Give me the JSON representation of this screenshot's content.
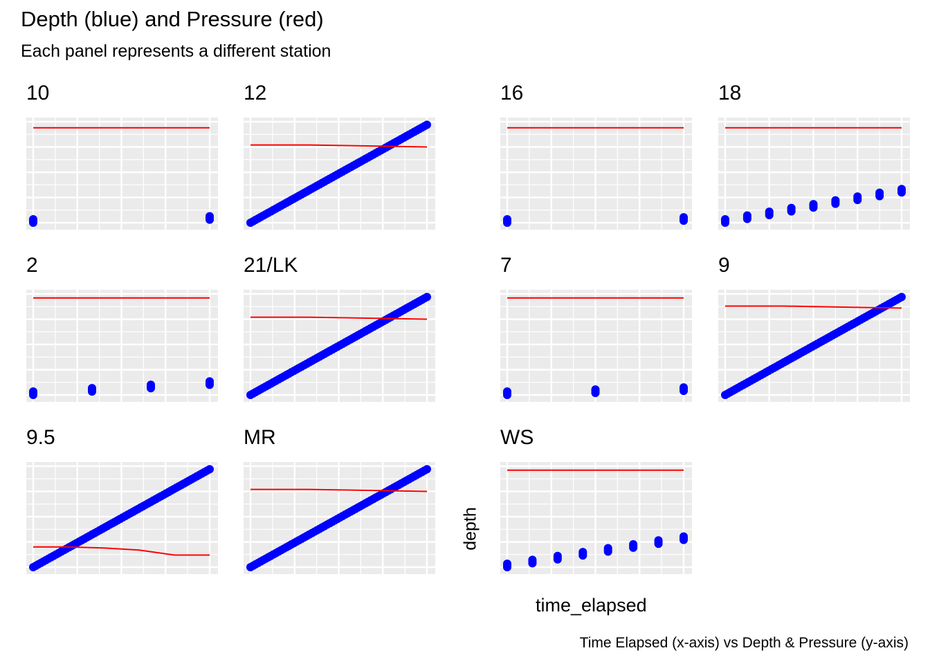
{
  "chart_data": {
    "type": "scatter",
    "title": "Depth (blue) and Pressure (red)",
    "subtitle": "Each panel represents a different station",
    "xlabel": "time_elapsed",
    "ylabel": "depth",
    "caption": "Time Elapsed (x-axis) vs Depth & Pressure (y-axis)",
    "grid": true,
    "facets": "station",
    "series_colors": {
      "depth": "#0000ff",
      "pressure": "#ff0000"
    },
    "panel_background": "#ebebeb",
    "panels": [
      {
        "station": "10",
        "depth_pattern": "steps",
        "depth_steps": 2,
        "depth_range": [
          0.0,
          0.03
        ],
        "pressure": [
          0.94,
          0.94
        ]
      },
      {
        "station": "12",
        "depth_pattern": "linear",
        "depth_range": [
          0.0,
          0.97
        ],
        "pressure": [
          0.77,
          0.77,
          0.76,
          0.75
        ]
      },
      {
        "station": "16",
        "depth_pattern": "steps",
        "depth_steps": 2,
        "depth_range": [
          0.0,
          0.02
        ],
        "pressure": [
          0.94,
          0.94
        ]
      },
      {
        "station": "18",
        "depth_pattern": "steps",
        "depth_steps": 9,
        "depth_range": [
          0.0,
          0.3
        ],
        "pressure": [
          0.94,
          0.94
        ]
      },
      {
        "station": "2",
        "depth_pattern": "steps",
        "depth_steps": 4,
        "depth_range": [
          0.0,
          0.1
        ],
        "pressure": [
          0.96,
          0.96
        ]
      },
      {
        "station": "21/LK",
        "depth_pattern": "linear",
        "depth_range": [
          0.0,
          0.97
        ],
        "pressure": [
          0.77,
          0.77,
          0.76,
          0.75
        ]
      },
      {
        "station": "7",
        "depth_pattern": "steps",
        "depth_steps": 3,
        "depth_range": [
          0.0,
          0.04
        ],
        "pressure": [
          0.96,
          0.96
        ]
      },
      {
        "station": "9",
        "depth_pattern": "linear",
        "depth_range": [
          0.0,
          0.97
        ],
        "pressure": [
          0.88,
          0.88,
          0.87,
          0.86
        ]
      },
      {
        "station": "9.5",
        "depth_pattern": "linear",
        "depth_range": [
          0.0,
          0.97
        ],
        "pressure": [
          0.2,
          0.2,
          0.19,
          0.17,
          0.12,
          0.12
        ]
      },
      {
        "station": "MR",
        "depth_pattern": "linear",
        "depth_range": [
          0.0,
          0.97
        ],
        "pressure": [
          0.77,
          0.77,
          0.76,
          0.75
        ]
      },
      {
        "station": "WS",
        "depth_pattern": "steps",
        "depth_steps": 8,
        "depth_range": [
          0.0,
          0.27
        ],
        "pressure": [
          0.96,
          0.96
        ]
      }
    ]
  }
}
